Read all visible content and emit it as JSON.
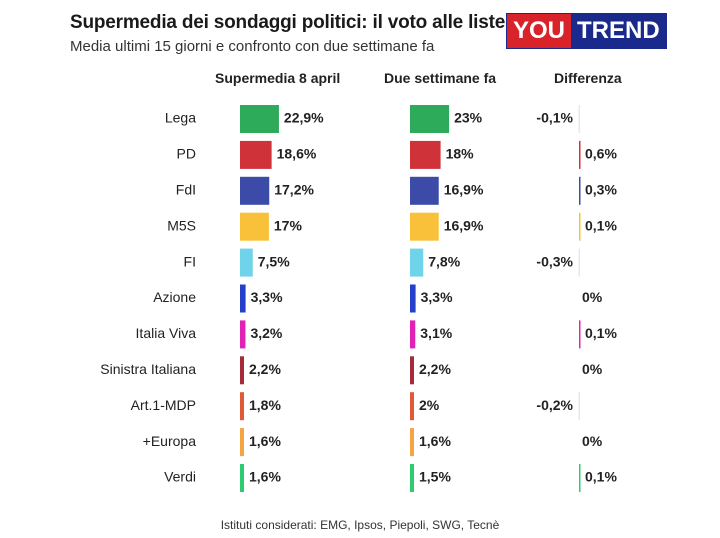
{
  "header": {
    "title": "Supermedia dei sondaggi politici: il voto alle liste",
    "subtitle": "Media ultimi 15 giorni e confronto con due settimane fa",
    "logo_you": "YOU",
    "logo_trend": "TREND"
  },
  "columns": {
    "current": "Supermedia 8 april",
    "previous": "Due settimane fa",
    "difference": "Differenza"
  },
  "footer": "Istituti considerati: EMG, Ipsos, Piepoli, SWG, Tecnè",
  "colors": {
    "negative_diff": "#e8e8e8",
    "positive_diff": "#f0d0d4"
  },
  "chart_data": {
    "type": "bar",
    "categories": [
      "Lega",
      "PD",
      "FdI",
      "M5S",
      "FI",
      "Azione",
      "Italia Viva",
      "Sinistra Italiana",
      "Art.1-MDP",
      "+Europa",
      "Verdi"
    ],
    "colors": [
      "#2daa5a",
      "#d0323a",
      "#3d4ba8",
      "#f9c13a",
      "#6fd3ea",
      "#2440c8",
      "#e023b4",
      "#a52a3a",
      "#e05a3a",
      "#f5a442",
      "#2ecc71"
    ],
    "series": [
      {
        "name": "Supermedia 8 april",
        "values": [
          22.9,
          18.6,
          17.2,
          17,
          7.5,
          3.3,
          3.2,
          2.2,
          1.8,
          1.6,
          1.6
        ],
        "labels": [
          "22,9%",
          "18,6%",
          "17,2%",
          "17%",
          "7,5%",
          "3,3%",
          "3,2%",
          "2,2%",
          "1,8%",
          "1,6%",
          "1,6%"
        ]
      },
      {
        "name": "Due settimane fa",
        "values": [
          23,
          18,
          16.9,
          16.9,
          7.8,
          3.3,
          3.1,
          2.2,
          2,
          1.6,
          1.5
        ],
        "labels": [
          "23%",
          "18%",
          "16,9%",
          "16,9%",
          "7,8%",
          "3,3%",
          "3,1%",
          "2,2%",
          "2%",
          "1,6%",
          "1,5%"
        ]
      },
      {
        "name": "Differenza",
        "values": [
          -0.1,
          0.6,
          0.3,
          0.1,
          -0.3,
          0,
          0.1,
          0,
          -0.2,
          0,
          0.1
        ],
        "labels": [
          "-0,1%",
          "0,6%",
          "0,3%",
          "0,1%",
          "-0,3%",
          "0%",
          "0,1%",
          "0%",
          "-0,2%",
          "0%",
          "0,1%"
        ]
      }
    ]
  }
}
